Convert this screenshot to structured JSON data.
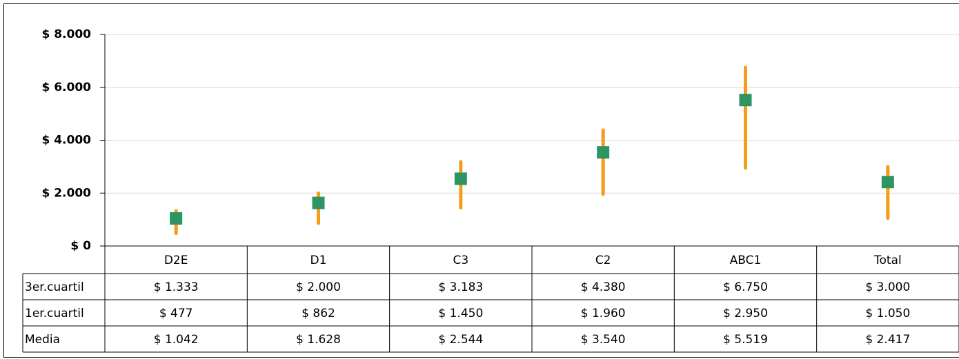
{
  "chart_data": {
    "type": "range",
    "categories": [
      "D2E",
      "D1",
      "C3",
      "C2",
      "ABC1",
      "Total"
    ],
    "series": [
      {
        "name": "3er.cuartil",
        "color": "#f59c1a",
        "values": [
          1333,
          2000,
          3183,
          4380,
          6750,
          3000
        ],
        "value_labels": [
          "$ 1.333",
          "$ 2.000",
          "$ 3.183",
          "$ 4.380",
          "$ 6.750",
          "$ 3.000"
        ]
      },
      {
        "name": "1er.cuartil",
        "color": "#f59c1a",
        "values": [
          477,
          862,
          1450,
          1960,
          2950,
          1050
        ],
        "value_labels": [
          "$ 477",
          "$ 862",
          "$ 1.450",
          "$ 1.960",
          "$ 2.950",
          "$ 1.050"
        ]
      },
      {
        "name": "Media",
        "color": "#2e9462",
        "values": [
          1042,
          1628,
          2544,
          3540,
          5519,
          2417
        ],
        "value_labels": [
          "$ 1.042",
          "$ 1.628",
          "$ 2.544",
          "$ 3.540",
          "$ 5.519",
          "$ 2.417"
        ]
      }
    ],
    "ylim": [
      0,
      8000
    ],
    "yticks": [
      {
        "value": 0,
        "label": "$ 0"
      },
      {
        "value": 2000,
        "label": "$ 2.000"
      },
      {
        "value": 4000,
        "label": "$ 4.000"
      },
      {
        "value": 6000,
        "label": "$ 6.000"
      },
      {
        "value": 8000,
        "label": "$ 8.000"
      }
    ],
    "grid": true
  }
}
